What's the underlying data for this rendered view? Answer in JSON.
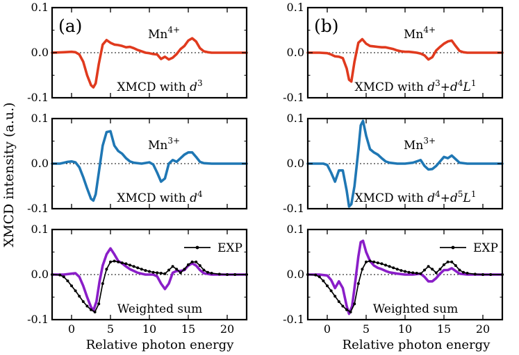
{
  "figure": {
    "ylabel": "XMCD intensity (a.u.)",
    "xlabel": "Relative photon energy",
    "panel_labels": [
      "(a)",
      "(b)"
    ]
  },
  "chart_data": [
    {
      "type": "line",
      "panel": "a",
      "row": 1,
      "column": 1,
      "title": "",
      "xlabel": "",
      "ylabel": "",
      "xlim": [
        -2.5,
        22.5
      ],
      "ylim": [
        -0.1,
        0.1
      ],
      "x_ticks": [
        0,
        5,
        10,
        15,
        20
      ],
      "y_ticks": [
        "-0.1",
        "0.0",
        "0.1"
      ],
      "show_x_tick_labels": false,
      "ion_label": {
        "base": "Mn",
        "sup": "4+"
      },
      "config_label": {
        "prefix": "XMCD with ",
        "parts": [
          {
            "t": "d",
            "i": true
          },
          {
            "t": "3",
            "sup": true
          }
        ]
      },
      "reference_line": 0,
      "series": [
        {
          "color": "#e03a1e",
          "width": 3.6,
          "markers": false,
          "x": [
            -2.5,
            -1,
            0,
            0.5,
            1,
            1.5,
            2,
            2.5,
            2.8,
            3.1,
            3.5,
            4,
            4.5,
            5,
            5.5,
            6,
            6.5,
            7,
            7.5,
            8,
            8.5,
            9,
            9.5,
            10,
            10.5,
            11,
            11.5,
            12,
            12.5,
            13,
            13.5,
            14,
            14.5,
            15,
            15.5,
            16,
            16.5,
            17,
            17.5,
            18,
            19,
            20,
            21,
            22.5
          ],
          "y": [
            0,
            0.001,
            0.002,
            0.001,
            -0.004,
            -0.02,
            -0.05,
            -0.072,
            -0.077,
            -0.068,
            -0.025,
            0.018,
            0.028,
            0.022,
            0.018,
            0.017,
            0.015,
            0.012,
            0.013,
            0.01,
            0.006,
            0.003,
            0,
            -0.001,
            -0.003,
            -0.004,
            -0.014,
            -0.009,
            -0.015,
            -0.011,
            -0.003,
            0.008,
            0.015,
            0.027,
            0.032,
            0.025,
            0.01,
            0.003,
            0.001,
            0,
            0,
            0,
            0,
            0
          ]
        }
      ]
    },
    {
      "type": "line",
      "panel": "b",
      "row": 1,
      "column": 2,
      "title": "",
      "xlabel": "",
      "ylabel": "",
      "xlim": [
        -2.5,
        22.5
      ],
      "ylim": [
        -0.1,
        0.1
      ],
      "x_ticks": [
        0,
        5,
        10,
        15,
        20
      ],
      "y_ticks": [
        "-0.1",
        "0.0",
        "0.1"
      ],
      "show_x_tick_labels": false,
      "ion_label": {
        "base": "Mn",
        "sup": "4+"
      },
      "config_label": {
        "prefix": "XMCD with ",
        "parts": [
          {
            "t": "d",
            "i": true
          },
          {
            "t": "3",
            "sup": true
          },
          {
            "t": "+"
          },
          {
            "t": "d",
            "i": true
          },
          {
            "t": "4",
            "sup": true
          },
          {
            "t": "L",
            "i": true
          },
          {
            "t": "1",
            "sup": true
          }
        ]
      },
      "reference_line": 0,
      "series": [
        {
          "color": "#e03a1e",
          "width": 3.6,
          "markers": false,
          "x": [
            -2.5,
            -1,
            0,
            0.5,
            1,
            1.5,
            2,
            2.5,
            2.8,
            3.1,
            3.5,
            4,
            4.5,
            5,
            5.5,
            6,
            6.5,
            7,
            7.5,
            8,
            8.5,
            9,
            9.5,
            10,
            10.5,
            11,
            11.5,
            12,
            12.5,
            13,
            13.5,
            14,
            14.5,
            15,
            15.5,
            16,
            16.5,
            17,
            17.5,
            18,
            19,
            20,
            21,
            22.5
          ],
          "y": [
            0,
            0,
            -0.001,
            -0.004,
            -0.008,
            -0.009,
            -0.012,
            -0.035,
            -0.06,
            -0.064,
            -0.02,
            0.022,
            0.03,
            0.02,
            0.015,
            0.014,
            0.013,
            0.012,
            0.012,
            0.01,
            0.008,
            0.005,
            0.003,
            0.002,
            0.002,
            0.001,
            0,
            -0.002,
            -0.006,
            -0.015,
            -0.01,
            0.005,
            0.013,
            0.02,
            0.025,
            0.027,
            0.015,
            0.004,
            0.001,
            0,
            0,
            0,
            0,
            0
          ]
        }
      ]
    },
    {
      "type": "line",
      "panel": "a",
      "row": 2,
      "column": 1,
      "title": "",
      "xlabel": "",
      "ylabel": "",
      "xlim": [
        -2.5,
        22.5
      ],
      "ylim": [
        -0.1,
        0.1
      ],
      "x_ticks": [
        0,
        5,
        10,
        15,
        20
      ],
      "y_ticks": [
        "-0.1",
        "0.0",
        "0.1"
      ],
      "show_x_tick_labels": false,
      "ion_label": {
        "base": "Mn",
        "sup": "3+"
      },
      "config_label": {
        "prefix": "XMCD with ",
        "parts": [
          {
            "t": "d",
            "i": true
          },
          {
            "t": "4",
            "sup": true
          }
        ]
      },
      "reference_line": 0,
      "series": [
        {
          "color": "#1f77b4",
          "width": 3.6,
          "markers": false,
          "x": [
            -2.5,
            -1.5,
            -1,
            -0.5,
            0,
            0.5,
            1,
            1.5,
            2,
            2.5,
            2.8,
            3.1,
            3.5,
            4,
            4.5,
            5,
            5.5,
            6,
            6.5,
            7,
            7.5,
            8,
            9,
            10,
            10.5,
            11,
            11.5,
            12,
            12.5,
            13,
            13.5,
            14,
            14.5,
            15,
            15.5,
            16,
            16.5,
            17,
            18,
            19,
            20,
            21,
            22.5
          ],
          "y": [
            0,
            0,
            0.002,
            0.004,
            0.005,
            0.003,
            -0.008,
            -0.03,
            -0.055,
            -0.078,
            -0.082,
            -0.068,
            -0.02,
            0.04,
            0.07,
            0.072,
            0.04,
            0.028,
            0.022,
            0.012,
            0.005,
            0.002,
            0,
            0.003,
            -0.002,
            -0.02,
            -0.04,
            -0.033,
            0,
            0.008,
            0.004,
            0.012,
            0.02,
            0.025,
            0.025,
            0.015,
            0.004,
            0.001,
            0,
            0,
            0,
            0,
            0
          ]
        }
      ]
    },
    {
      "type": "line",
      "panel": "b",
      "row": 2,
      "column": 2,
      "title": "",
      "xlabel": "",
      "ylabel": "",
      "xlim": [
        -2.5,
        22.5
      ],
      "ylim": [
        -0.1,
        0.1
      ],
      "x_ticks": [
        0,
        5,
        10,
        15,
        20
      ],
      "y_ticks": [
        "-0.1",
        "0.0",
        "0.1"
      ],
      "show_x_tick_labels": false,
      "ion_label": {
        "base": "Mn",
        "sup": "3+"
      },
      "config_label": {
        "prefix": "XMCD with ",
        "parts": [
          {
            "t": "d",
            "i": true
          },
          {
            "t": "4",
            "sup": true
          },
          {
            "t": "+"
          },
          {
            "t": "d",
            "i": true
          },
          {
            "t": "5",
            "sup": true
          },
          {
            "t": "L",
            "i": true
          },
          {
            "t": "1",
            "sup": true
          }
        ]
      },
      "reference_line": 0,
      "series": [
        {
          "color": "#1f77b4",
          "width": 3.6,
          "markers": false,
          "x": [
            -2.5,
            -1,
            -0.5,
            0,
            0.5,
            1,
            1.5,
            2,
            2.5,
            2.8,
            3.1,
            3.5,
            4,
            4.3,
            4.6,
            5,
            5.5,
            6,
            6.5,
            7,
            7.5,
            8,
            9,
            10,
            11,
            11.5,
            12,
            12.5,
            13,
            13.5,
            14,
            14.5,
            15,
            15.5,
            16,
            16.5,
            17,
            18,
            19,
            20,
            21,
            22.5
          ],
          "y": [
            0,
            0,
            0,
            -0.003,
            -0.02,
            -0.04,
            -0.015,
            -0.015,
            -0.06,
            -0.095,
            -0.09,
            -0.05,
            0.03,
            0.085,
            0.095,
            0.062,
            0.032,
            0.025,
            0.02,
            0.012,
            0.005,
            0.002,
            0,
            0,
            0.002,
            0.005,
            0.008,
            -0.005,
            -0.013,
            -0.012,
            -0.005,
            0.005,
            0.015,
            0.012,
            0.018,
            0.01,
            0.002,
            0,
            0,
            0,
            0,
            0
          ]
        }
      ]
    },
    {
      "type": "line",
      "panel": "a",
      "row": 3,
      "column": 1,
      "title": "",
      "xlabel": "",
      "ylabel": "",
      "xlim": [
        -2.5,
        22.5
      ],
      "ylim": [
        -0.1,
        0.1
      ],
      "x_ticks": [
        0,
        5,
        10,
        15,
        20
      ],
      "y_ticks": [
        "-0.1",
        "0.0",
        "0.1"
      ],
      "show_x_tick_labels": true,
      "config_label": {
        "prefix": "Weighted sum",
        "parts": []
      },
      "reference_line": 0,
      "legend": {
        "position": "top-right",
        "entries": [
          "EXP"
        ]
      },
      "series": [
        {
          "name": "",
          "color": "#8a1ec8",
          "width": 3.6,
          "markers": false,
          "x": [
            -2.5,
            -1,
            0,
            0.5,
            1,
            1.5,
            2,
            2.5,
            2.8,
            3.2,
            3.6,
            4,
            4.5,
            5,
            5.5,
            6,
            6.5,
            7,
            7.5,
            8,
            8.5,
            9,
            9.5,
            10,
            10.5,
            11,
            11.5,
            12,
            12.5,
            13,
            13.5,
            14,
            14.5,
            15,
            15.5,
            16,
            16.5,
            17,
            18,
            19,
            20,
            21,
            22.5
          ],
          "y": [
            0,
            0,
            0.002,
            0.003,
            -0.005,
            -0.025,
            -0.05,
            -0.072,
            -0.08,
            -0.06,
            -0.015,
            0.02,
            0.045,
            0.058,
            0.045,
            0.03,
            0.025,
            0.018,
            0.012,
            0.008,
            0.004,
            0.002,
            0,
            0,
            0,
            -0.004,
            -0.02,
            -0.032,
            -0.02,
            0.004,
            0.008,
            0.008,
            0.01,
            0.02,
            0.025,
            0.02,
            0.01,
            0.003,
            0,
            0,
            0,
            0,
            0
          ]
        },
        {
          "name": "EXP",
          "color": "#000000",
          "width": 1.7,
          "markers": true,
          "x": [
            -2.5,
            -1.5,
            -1,
            -0.5,
            0,
            0.5,
            1,
            1.5,
            2,
            2.5,
            3,
            3.5,
            4,
            4.5,
            5,
            5.5,
            6,
            6.5,
            7,
            7.5,
            8,
            8.5,
            9,
            9.5,
            10,
            10.5,
            11,
            11.5,
            12,
            12.5,
            13,
            13.5,
            14,
            14.5,
            15,
            15.5,
            16,
            16.5,
            17,
            17.5,
            18,
            19,
            20,
            21,
            22.5
          ],
          "y": [
            0,
            -0.001,
            -0.005,
            -0.014,
            -0.025,
            -0.036,
            -0.048,
            -0.06,
            -0.07,
            -0.078,
            -0.083,
            -0.065,
            -0.02,
            0.012,
            0.028,
            0.03,
            0.028,
            0.026,
            0.024,
            0.021,
            0.018,
            0.015,
            0.012,
            0.009,
            0.007,
            0.005,
            0.004,
            0.003,
            0.002,
            0.01,
            0.018,
            0.012,
            0.004,
            0.012,
            0.022,
            0.028,
            0.028,
            0.02,
            0.01,
            0.005,
            0.003,
            0.001,
            0,
            0,
            0
          ]
        }
      ]
    },
    {
      "type": "line",
      "panel": "b",
      "row": 3,
      "column": 2,
      "title": "",
      "xlabel": "",
      "ylabel": "",
      "xlim": [
        -2.5,
        22.5
      ],
      "ylim": [
        -0.1,
        0.1
      ],
      "x_ticks": [
        0,
        5,
        10,
        15,
        20
      ],
      "y_ticks": [
        "-0.1",
        "0.0",
        "0.1"
      ],
      "show_x_tick_labels": true,
      "config_label": {
        "prefix": "Weighted sum",
        "parts": []
      },
      "reference_line": 0,
      "legend": {
        "position": "top-right",
        "entries": [
          "EXP"
        ]
      },
      "series": [
        {
          "name": "",
          "color": "#8a1ec8",
          "width": 3.6,
          "markers": false,
          "x": [
            -2.5,
            -1,
            0,
            0.5,
            1,
            1.5,
            2,
            2.5,
            2.8,
            3.2,
            3.5,
            4,
            4.3,
            4.6,
            5,
            5.5,
            6,
            6.5,
            7,
            7.5,
            8,
            9,
            10,
            11,
            12,
            12.5,
            13,
            13.5,
            14,
            14.5,
            15,
            15.5,
            16,
            16.5,
            17,
            18,
            19,
            20,
            21,
            22.5
          ],
          "y": [
            0,
            0,
            -0.002,
            -0.012,
            -0.03,
            -0.015,
            -0.03,
            -0.07,
            -0.087,
            -0.07,
            -0.03,
            0.04,
            0.072,
            0.075,
            0.05,
            0.03,
            0.02,
            0.015,
            0.012,
            0.008,
            0.005,
            0.002,
            0,
            0,
            0.002,
            -0.005,
            -0.015,
            -0.015,
            -0.008,
            0.002,
            0.01,
            0.01,
            0.014,
            0.008,
            0.002,
            0,
            0,
            0,
            0,
            0
          ]
        },
        {
          "name": "EXP",
          "color": "#000000",
          "width": 1.7,
          "markers": true,
          "x": [
            -2.5,
            -1.5,
            -1,
            -0.5,
            0,
            0.5,
            1,
            1.5,
            2,
            2.5,
            3,
            3.5,
            4,
            4.5,
            5,
            5.5,
            6,
            6.5,
            7,
            7.5,
            8,
            8.5,
            9,
            9.5,
            10,
            10.5,
            11,
            11.5,
            12,
            12.5,
            13,
            13.5,
            14,
            14.5,
            15,
            15.5,
            16,
            16.5,
            17,
            17.5,
            18,
            19,
            20,
            21,
            22.5
          ],
          "y": [
            0,
            -0.001,
            -0.005,
            -0.014,
            -0.025,
            -0.036,
            -0.048,
            -0.06,
            -0.07,
            -0.078,
            -0.083,
            -0.065,
            -0.02,
            0.012,
            0.028,
            0.03,
            0.028,
            0.026,
            0.024,
            0.021,
            0.018,
            0.015,
            0.012,
            0.009,
            0.007,
            0.005,
            0.004,
            0.003,
            0.002,
            0.01,
            0.018,
            0.012,
            0.004,
            0.012,
            0.022,
            0.028,
            0.028,
            0.02,
            0.01,
            0.005,
            0.003,
            0.001,
            0,
            0,
            0
          ]
        }
      ]
    }
  ]
}
